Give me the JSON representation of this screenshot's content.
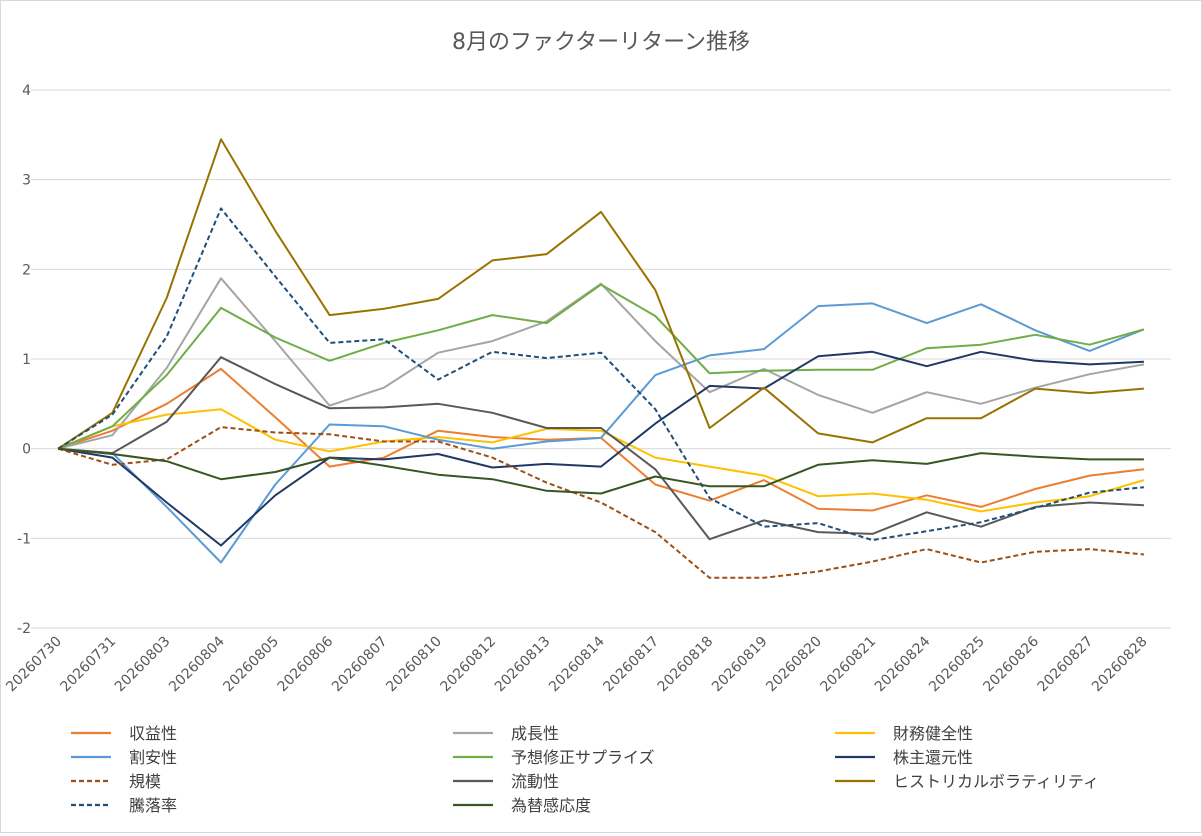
{
  "chart_data": {
    "type": "line",
    "title": "8月のファクターリターン推移",
    "xlabel": "",
    "ylabel": "",
    "ylim": [
      -2,
      4
    ],
    "yticks": [
      -2,
      -1,
      0,
      1,
      2,
      3,
      4
    ],
    "grid": "horizontal",
    "legend_position": "bottom",
    "categories": [
      "20260730",
      "20260731",
      "20260803",
      "20260804",
      "20260805",
      "20260806",
      "20260807",
      "20260810",
      "20260812",
      "20260813",
      "20260814",
      "20260817",
      "20260818",
      "20260819",
      "20260820",
      "20260821",
      "20260824",
      "20260825",
      "20260826",
      "20260827",
      "20260828"
    ],
    "series": [
      {
        "name": "収益性",
        "color": "#ED7D31",
        "dash": "solid",
        "values": [
          0,
          0.2,
          0.5,
          0.89,
          0.35,
          -0.2,
          -0.1,
          0.2,
          0.13,
          0.1,
          0.12,
          -0.4,
          -0.58,
          -0.35,
          -0.67,
          -0.69,
          -0.52,
          -0.65,
          -0.45,
          -0.3,
          -0.23
        ]
      },
      {
        "name": "成長性",
        "color": "#A5A5A5",
        "dash": "solid",
        "values": [
          0,
          0.15,
          0.9,
          1.9,
          1.2,
          0.48,
          0.68,
          1.07,
          1.2,
          1.42,
          1.84,
          1.2,
          0.63,
          0.89,
          0.6,
          0.4,
          0.63,
          0.5,
          0.68,
          0.83,
          0.94
        ]
      },
      {
        "name": "財務健全性",
        "color": "#FFC000",
        "dash": "solid",
        "values": [
          0,
          0.25,
          0.38,
          0.44,
          0.1,
          -0.03,
          0.08,
          0.13,
          0.07,
          0.22,
          0.2,
          -0.1,
          -0.2,
          -0.3,
          -0.53,
          -0.5,
          -0.57,
          -0.7,
          -0.6,
          -0.53,
          -0.35
        ]
      },
      {
        "name": "割安性",
        "color": "#5B9BD5",
        "dash": "solid",
        "values": [
          0,
          -0.05,
          -0.65,
          -1.27,
          -0.4,
          0.27,
          0.25,
          0.1,
          0.0,
          0.08,
          0.12,
          0.82,
          1.04,
          1.11,
          1.59,
          1.62,
          1.4,
          1.61,
          1.32,
          1.09,
          1.33
        ]
      },
      {
        "name": "予想修正サプライズ",
        "color": "#70AD47",
        "dash": "solid",
        "values": [
          0,
          0.25,
          0.82,
          1.57,
          1.24,
          0.98,
          1.18,
          1.32,
          1.49,
          1.4,
          1.83,
          1.48,
          0.84,
          0.87,
          0.88,
          0.88,
          1.12,
          1.16,
          1.27,
          1.16,
          1.33
        ]
      },
      {
        "name": "株主還元性",
        "color": "#203864",
        "dash": "solid",
        "values": [
          0,
          -0.1,
          -0.6,
          -1.08,
          -0.52,
          -0.1,
          -0.12,
          -0.06,
          -0.21,
          -0.17,
          -0.2,
          0.28,
          0.7,
          0.67,
          1.03,
          1.08,
          0.92,
          1.08,
          0.98,
          0.94,
          0.97
        ]
      },
      {
        "name": "規模",
        "color": "#9C4F14",
        "dash": "dashed",
        "values": [
          0,
          -0.18,
          -0.12,
          0.24,
          0.18,
          0.16,
          0.08,
          0.08,
          -0.1,
          -0.38,
          -0.6,
          -0.93,
          -1.44,
          -1.44,
          -1.37,
          -1.26,
          -1.12,
          -1.27,
          -1.15,
          -1.12,
          -1.18
        ]
      },
      {
        "name": "流動性",
        "color": "#595959",
        "dash": "solid",
        "values": [
          0,
          -0.05,
          0.3,
          1.02,
          0.72,
          0.45,
          0.46,
          0.5,
          0.4,
          0.23,
          0.23,
          -0.23,
          -1.01,
          -0.8,
          -0.93,
          -0.95,
          -0.71,
          -0.87,
          -0.65,
          -0.6,
          -0.63
        ]
      },
      {
        "name": "ヒストリカルボラティリティ",
        "color": "#997300",
        "dash": "solid",
        "values": [
          0,
          0.4,
          1.68,
          3.45,
          2.43,
          1.49,
          1.56,
          1.67,
          2.1,
          2.17,
          2.64,
          1.77,
          0.23,
          0.68,
          0.17,
          0.07,
          0.34,
          0.34,
          0.67,
          0.62,
          0.67
        ]
      },
      {
        "name": "騰落率",
        "color": "#1F4E79",
        "dash": "dashed",
        "values": [
          0,
          0.38,
          1.25,
          2.68,
          1.92,
          1.18,
          1.22,
          0.77,
          1.08,
          1.01,
          1.07,
          0.44,
          -0.55,
          -0.87,
          -0.83,
          -1.02,
          -0.92,
          -0.82,
          -0.66,
          -0.49,
          -0.43
        ]
      },
      {
        "name": "為替感応度",
        "color": "#375623",
        "dash": "solid",
        "values": [
          0,
          -0.06,
          -0.14,
          -0.34,
          -0.26,
          -0.1,
          -0.19,
          -0.29,
          -0.34,
          -0.47,
          -0.5,
          -0.31,
          -0.42,
          -0.42,
          -0.18,
          -0.13,
          -0.17,
          -0.05,
          -0.09,
          -0.12,
          -0.12
        ]
      }
    ]
  }
}
